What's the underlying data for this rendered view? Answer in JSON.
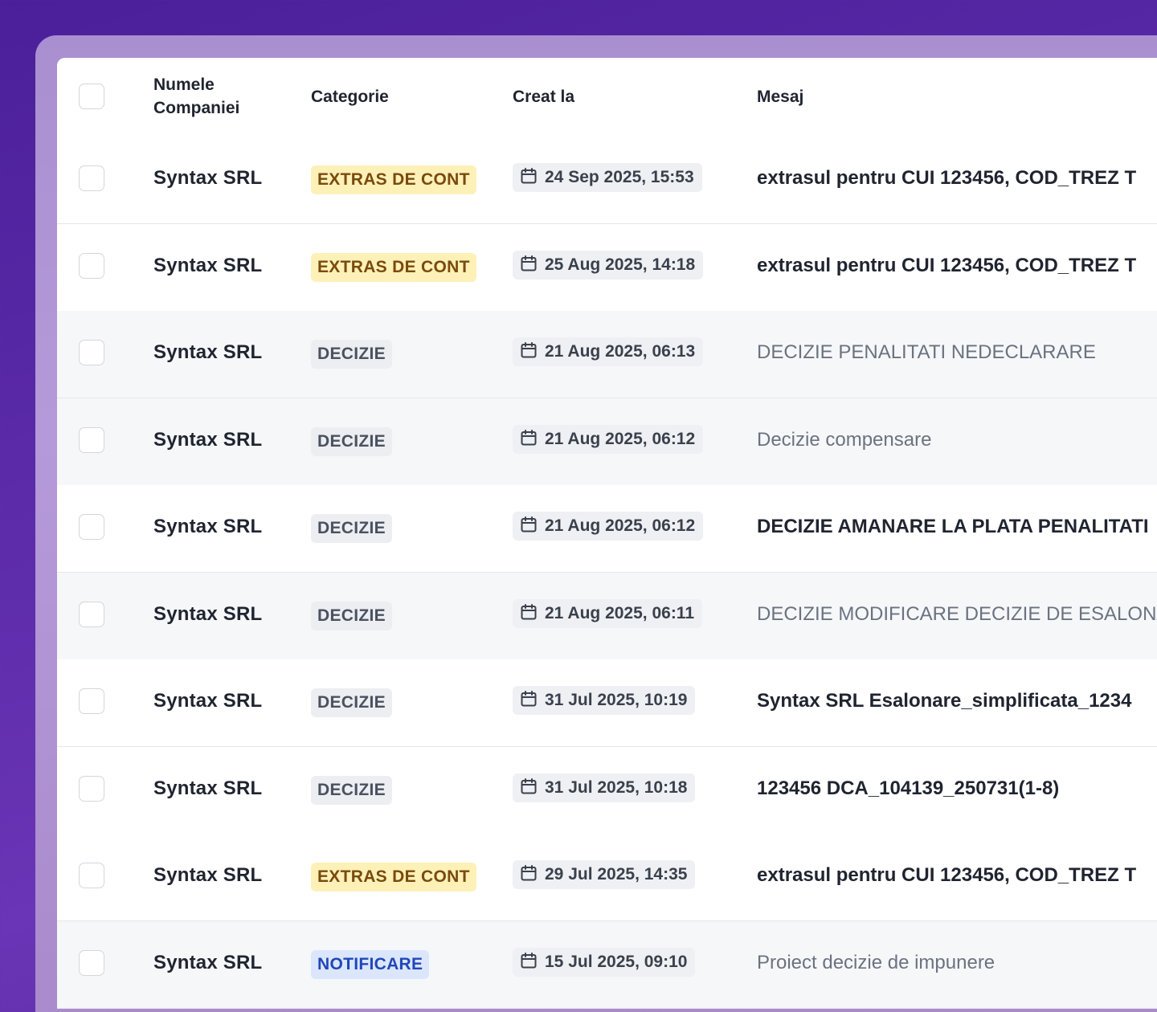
{
  "table": {
    "headers": {
      "company_line1": "Numele",
      "company_line2": "Companiei",
      "category": "Categorie",
      "created": "Creat la",
      "message": "Mesaj"
    },
    "rows": [
      {
        "company": "Syntax SRL",
        "category": "EXTRAS DE CONT",
        "category_style": "extras",
        "created": "24 Sep 2025, 15:53",
        "message": "extrasul pentru CUI 123456, COD_TREZ T",
        "read": false
      },
      {
        "company": "Syntax SRL",
        "category": "EXTRAS DE CONT",
        "category_style": "extras",
        "created": "25 Aug 2025, 14:18",
        "message": "extrasul pentru CUI 123456, COD_TREZ T",
        "read": false
      },
      {
        "company": "Syntax SRL",
        "category": "DECIZIE",
        "category_style": "decizie",
        "created": "21 Aug 2025, 06:13",
        "message": "DECIZIE PENALITATI NEDECLARARE",
        "read": true
      },
      {
        "company": "Syntax SRL",
        "category": "DECIZIE",
        "category_style": "decizie",
        "created": "21 Aug 2025, 06:12",
        "message": "Decizie compensare",
        "read": true
      },
      {
        "company": "Syntax SRL",
        "category": "DECIZIE",
        "category_style": "decizie",
        "created": "21 Aug 2025, 06:12",
        "message": "DECIZIE AMANARE LA PLATA PENALITATI",
        "read": false
      },
      {
        "company": "Syntax SRL",
        "category": "DECIZIE",
        "category_style": "decizie",
        "created": "21 Aug 2025, 06:11",
        "message": "DECIZIE MODIFICARE DECIZIE DE ESALONA",
        "read": true
      },
      {
        "company": "Syntax SRL",
        "category": "DECIZIE",
        "category_style": "decizie",
        "created": "31 Jul 2025, 10:19",
        "message": "Syntax SRL Esalonare_simplificata_1234",
        "read": false
      },
      {
        "company": "Syntax SRL",
        "category": "DECIZIE",
        "category_style": "decizie",
        "created": "31 Jul 2025, 10:18",
        "message": "123456 DCA_104139_250731(1-8)",
        "read": false
      },
      {
        "company": "Syntax SRL",
        "category": "EXTRAS DE CONT",
        "category_style": "extras",
        "created": "29 Jul 2025, 14:35",
        "message": "extrasul pentru CUI 123456, COD_TREZ T",
        "read": false
      },
      {
        "company": "Syntax SRL",
        "category": "NOTIFICARE",
        "category_style": "notificare",
        "created": "15 Jul 2025, 09:10",
        "message": "Proiect decizie de impunere",
        "read": true
      }
    ]
  },
  "icons": {
    "date": "calendar-icon",
    "select": "checkbox"
  },
  "colors": {
    "background": "#5a2aa8",
    "extras_badge_bg": "#fdf1b8",
    "extras_badge_text": "#7a4a0c",
    "decizie_badge_bg": "#eceef1",
    "notificare_badge_bg": "#dbe6fc",
    "notificare_badge_text": "#2146b8",
    "read_row_bg": "#f6f7f9"
  }
}
